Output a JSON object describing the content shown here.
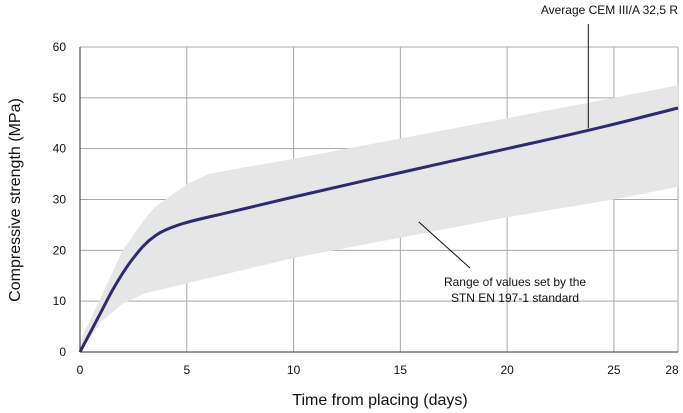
{
  "chart_data": {
    "type": "line",
    "xlabel": "Time from placing (days)",
    "ylabel": "Compressive strength (MPa)",
    "xlim": [
      0,
      28
    ],
    "ylim": [
      0,
      60
    ],
    "x_ticks": [
      0,
      5,
      10,
      15,
      20,
      25,
      28
    ],
    "y_ticks": [
      0,
      10,
      20,
      30,
      40,
      50,
      60
    ],
    "grid": true,
    "series": [
      {
        "name": "Average CEM III/A 32,5 R",
        "color": "#2e2a6e",
        "x": [
          0,
          0.5,
          1,
          1.5,
          2,
          2.5,
          3,
          3.5,
          4,
          5,
          7,
          10,
          15,
          20,
          24,
          28
        ],
        "y": [
          0,
          4,
          8,
          12,
          15.5,
          18.5,
          21,
          22.8,
          24,
          25.5,
          27.5,
          30.5,
          35.3,
          40,
          43.8,
          48
        ]
      }
    ],
    "band": {
      "name": "Range of values set by the STN EN 197-1 standard",
      "color": "#e6e6e6",
      "x": [
        0,
        1,
        2,
        3,
        3.5,
        4,
        5,
        6,
        7,
        10,
        15,
        20,
        25,
        28
      ],
      "upper": [
        2,
        11,
        20,
        26,
        28.5,
        30,
        33,
        35,
        35.8,
        38,
        42,
        46,
        50,
        52.5
      ],
      "lower": [
        0,
        6,
        9.5,
        11.5,
        12,
        12.5,
        13.5,
        14.5,
        15.5,
        18.5,
        22.5,
        26.5,
        30,
        32.5
      ]
    },
    "annotations": [
      {
        "text": "Average CEM III/A 32,5 R",
        "target_x": 23.8,
        "target_y": 44
      },
      {
        "text": "Range of values set by the",
        "target_x": 16,
        "target_y": 25
      },
      {
        "text": "STN EN 197-1 standard",
        "target_x": 16,
        "target_y": 25
      }
    ]
  }
}
